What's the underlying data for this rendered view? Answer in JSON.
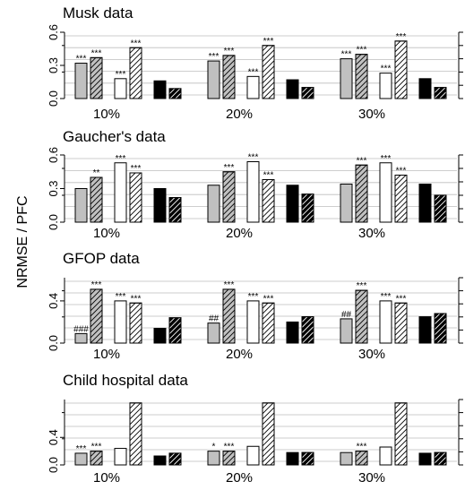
{
  "ylabel": "NRMSE / PFC",
  "colors": {
    "gray": "#c0c0c0",
    "black": "#000000",
    "white": "#ffffff",
    "grid": "#bdbdbd"
  },
  "bar_styles": [
    "gray-solid",
    "gray-hatched",
    "white-solid",
    "white-hatched",
    "black-solid",
    "black-hatched"
  ],
  "chart_data": [
    {
      "type": "bar",
      "title": "Musk data",
      "categories": [
        "10%",
        "20%",
        "30%"
      ],
      "ylim": [
        0,
        0.6
      ],
      "yticks": [
        "0.0",
        "0.3",
        "0.6"
      ],
      "series": [
        {
          "values": [
            0.32,
            0.34,
            0.36
          ],
          "annotations": [
            "***",
            "***",
            "***"
          ]
        },
        {
          "values": [
            0.37,
            0.39,
            0.4
          ],
          "annotations": [
            "***",
            "***",
            "***"
          ]
        },
        {
          "values": [
            0.18,
            0.2,
            0.23
          ],
          "annotations": [
            "***",
            "***",
            "***"
          ]
        },
        {
          "values": [
            0.46,
            0.48,
            0.52
          ],
          "annotations": [
            "***",
            "***",
            "***"
          ]
        },
        {
          "values": [
            0.16,
            0.17,
            0.18
          ],
          "annotations": [
            "",
            "",
            ""
          ]
        },
        {
          "values": [
            0.09,
            0.1,
            0.1
          ],
          "annotations": [
            "",
            "",
            ""
          ]
        }
      ]
    },
    {
      "type": "bar",
      "title": "Gaucher's data",
      "categories": [
        "10%",
        "20%",
        "30%"
      ],
      "ylim": [
        0,
        0.6
      ],
      "yticks": [
        "0.0",
        "0.3",
        "0.6"
      ],
      "series": [
        {
          "values": [
            0.3,
            0.33,
            0.34
          ],
          "annotations": [
            "",
            "",
            ""
          ]
        },
        {
          "values": [
            0.4,
            0.45,
            0.51
          ],
          "annotations": [
            "**",
            "***",
            "***"
          ]
        },
        {
          "values": [
            0.53,
            0.54,
            0.53
          ],
          "annotations": [
            "***",
            "***",
            "***"
          ]
        },
        {
          "values": [
            0.44,
            0.38,
            0.42
          ],
          "annotations": [
            "***",
            "***",
            "***"
          ]
        },
        {
          "values": [
            0.3,
            0.33,
            0.34
          ],
          "annotations": [
            "",
            "",
            ""
          ]
        },
        {
          "values": [
            0.22,
            0.25,
            0.24
          ],
          "annotations": [
            "",
            "",
            ""
          ]
        }
      ]
    },
    {
      "type": "bar",
      "title": "GFOP data",
      "categories": [
        "10%",
        "20%",
        "30%"
      ],
      "ylim": [
        0,
        0.62
      ],
      "yticks": [
        "0.0",
        "0.4"
      ],
      "series": [
        {
          "values": [
            0.09,
            0.19,
            0.23
          ],
          "annotations": [
            "###",
            "##",
            "##"
          ]
        },
        {
          "values": [
            0.51,
            0.51,
            0.5
          ],
          "annotations": [
            "***",
            "***",
            "***"
          ]
        },
        {
          "values": [
            0.4,
            0.4,
            0.4
          ],
          "annotations": [
            "***",
            "***",
            "***"
          ]
        },
        {
          "values": [
            0.38,
            0.38,
            0.38
          ],
          "annotations": [
            "***",
            "***",
            "***"
          ]
        },
        {
          "values": [
            0.14,
            0.2,
            0.25
          ],
          "annotations": [
            "",
            "",
            ""
          ]
        },
        {
          "values": [
            0.24,
            0.25,
            0.28
          ],
          "annotations": [
            "",
            "",
            ""
          ]
        }
      ]
    },
    {
      "type": "bar",
      "title": "Child hospital data",
      "categories": [
        "10%",
        "20%",
        "30%"
      ],
      "ylim": [
        0,
        0.95
      ],
      "yticks": [
        "0.0",
        "0.4"
      ],
      "series": [
        {
          "values": [
            0.17,
            0.2,
            0.18
          ],
          "annotations": [
            "***",
            "*",
            ""
          ]
        },
        {
          "values": [
            0.2,
            0.2,
            0.2
          ],
          "annotations": [
            "***",
            "***",
            "***"
          ]
        },
        {
          "values": [
            0.24,
            0.27,
            0.26
          ],
          "annotations": [
            "",
            "",
            ""
          ]
        },
        {
          "values": [
            0.9,
            0.9,
            0.9
          ],
          "annotations": [
            "",
            "",
            ""
          ]
        },
        {
          "values": [
            0.13,
            0.18,
            0.17
          ],
          "annotations": [
            "",
            "",
            ""
          ]
        },
        {
          "values": [
            0.17,
            0.18,
            0.18
          ],
          "annotations": [
            "",
            "",
            ""
          ]
        }
      ]
    }
  ]
}
